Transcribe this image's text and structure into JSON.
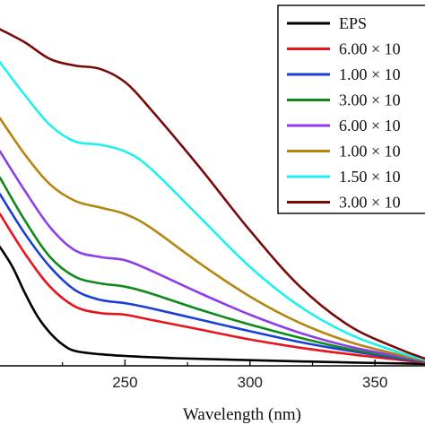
{
  "chart_data": {
    "type": "line",
    "title": "",
    "xlabel": "Wavelength (nm)",
    "ylabel": "",
    "xlim": [
      200,
      370
    ],
    "ylim": [
      0,
      1
    ],
    "xticks": [
      250,
      300,
      350
    ],
    "xtick_labels": [
      "250",
      "300",
      "350"
    ],
    "grid": false,
    "legend_position": "top-right",
    "series": [
      {
        "name": "EPS",
        "color": "#000000",
        "x": [
          200,
          205,
          210,
          215,
          220,
          225,
          230,
          240,
          250,
          270,
          300,
          340,
          370
        ],
        "y": [
          0.36,
          0.3,
          0.22,
          0.15,
          0.1,
          0.065,
          0.045,
          0.035,
          0.03,
          0.023,
          0.017,
          0.01,
          0.006
        ]
      },
      {
        "name": "6.00 × 10",
        "color": "#e8141c",
        "x": [
          200,
          210,
          220,
          230,
          240,
          250,
          260,
          280,
          300,
          320,
          340,
          360,
          370
        ],
        "y": [
          0.46,
          0.34,
          0.24,
          0.18,
          0.16,
          0.155,
          0.14,
          0.11,
          0.08,
          0.055,
          0.035,
          0.018,
          0.01
        ]
      },
      {
        "name": "1.00 × 10",
        "color": "#1a3fd6",
        "x": [
          200,
          210,
          220,
          230,
          240,
          250,
          260,
          280,
          300,
          320,
          340,
          360,
          370
        ],
        "y": [
          0.52,
          0.4,
          0.3,
          0.23,
          0.2,
          0.19,
          0.175,
          0.14,
          0.105,
          0.072,
          0.045,
          0.022,
          0.012
        ]
      },
      {
        "name": "3.00 × 10",
        "color": "#0e8a1a",
        "x": [
          200,
          210,
          220,
          230,
          240,
          250,
          260,
          280,
          300,
          320,
          340,
          360,
          370
        ],
        "y": [
          0.57,
          0.44,
          0.33,
          0.27,
          0.25,
          0.24,
          0.22,
          0.17,
          0.125,
          0.085,
          0.05,
          0.025,
          0.013
        ]
      },
      {
        "name": "6.00 × 10",
        "color": "#8e3ee8",
        "x": [
          200,
          210,
          220,
          230,
          240,
          250,
          260,
          280,
          300,
          320,
          340,
          360,
          370
        ],
        "y": [
          0.65,
          0.53,
          0.42,
          0.35,
          0.33,
          0.32,
          0.29,
          0.22,
          0.155,
          0.1,
          0.058,
          0.028,
          0.015
        ]
      },
      {
        "name": "1.00 × 10",
        "color": "#b5860d",
        "x": [
          200,
          210,
          220,
          230,
          240,
          250,
          260,
          280,
          300,
          320,
          340,
          360,
          370
        ],
        "y": [
          0.75,
          0.64,
          0.55,
          0.5,
          0.48,
          0.46,
          0.42,
          0.31,
          0.21,
          0.13,
          0.072,
          0.033,
          0.017
        ]
      },
      {
        "name": "1.50 × 10",
        "color": "#1cf0f0",
        "x": [
          200,
          210,
          220,
          230,
          240,
          250,
          260,
          280,
          300,
          320,
          340,
          360,
          370
        ],
        "y": [
          0.92,
          0.82,
          0.73,
          0.68,
          0.67,
          0.65,
          0.6,
          0.45,
          0.3,
          0.18,
          0.095,
          0.04,
          0.019
        ]
      },
      {
        "name": "3.00 × 10",
        "color": "#7a0a0a",
        "x": [
          200,
          210,
          220,
          230,
          240,
          250,
          260,
          280,
          300,
          320,
          340,
          360,
          370
        ],
        "y": [
          1.02,
          0.98,
          0.93,
          0.91,
          0.9,
          0.86,
          0.78,
          0.6,
          0.41,
          0.24,
          0.12,
          0.05,
          0.022
        ]
      }
    ]
  }
}
